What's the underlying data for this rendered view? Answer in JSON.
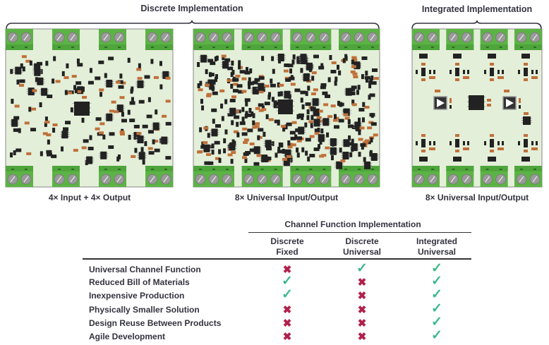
{
  "headers": {
    "discrete": "Discrete Implementation",
    "integrated": "Integrated Implementation"
  },
  "boards": [
    {
      "caption": "4× Input + 4× Output",
      "screws_per_block": 2
    },
    {
      "caption": "8× Universal Input/Output",
      "screws_per_block": 3
    },
    {
      "caption": "8× Universal Input/Output",
      "screws_per_block": 2
    }
  ],
  "colors": {
    "board": "#e4efd9",
    "terminal": "#5cb345",
    "screw": "#9a9a9a",
    "chip": "#222222",
    "resistor": "#c0703a",
    "check": "#3cb88a",
    "cross": "#b0204a"
  },
  "table": {
    "group_header": "Channel Function Implementation",
    "columns": [
      {
        "line1": "Discrete",
        "line2": "Fixed"
      },
      {
        "line1": "Discrete",
        "line2": "Universal"
      },
      {
        "line1": "Integrated",
        "line2": "Universal"
      }
    ],
    "rows": [
      {
        "label": "Universal Channel Function",
        "values": [
          false,
          true,
          true
        ]
      },
      {
        "label": "Reduced Bill of Materials",
        "values": [
          true,
          false,
          true
        ]
      },
      {
        "label": "Inexpensive Production",
        "values": [
          true,
          false,
          true
        ]
      },
      {
        "label": "Physically Smaller Solution",
        "values": [
          false,
          false,
          true
        ]
      },
      {
        "label": "Design Reuse Between Products",
        "values": [
          false,
          false,
          true
        ]
      },
      {
        "label": "Agile Development",
        "values": [
          false,
          false,
          true
        ]
      }
    ],
    "check_symbol": "✓",
    "cross_symbol": "✖"
  }
}
